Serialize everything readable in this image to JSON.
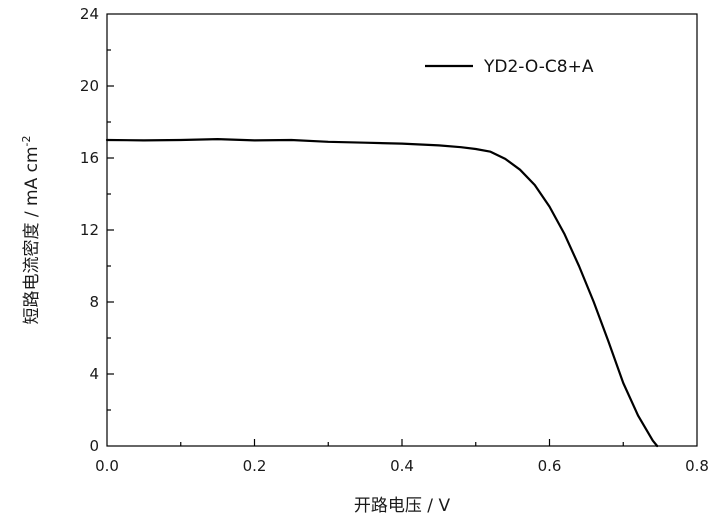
{
  "chart_data": {
    "type": "line",
    "title": "",
    "xlabel": "开路电压 / V",
    "ylabel": "短路电流密度 / mA cm",
    "ylabel_sup": "-2",
    "xlim": [
      0.0,
      0.8
    ],
    "ylim": [
      0,
      24
    ],
    "xticks": [
      "0.0",
      "0.2",
      "0.4",
      "0.6",
      "0.8"
    ],
    "yticks": [
      "0",
      "4",
      "8",
      "12",
      "16",
      "20",
      "24"
    ],
    "grid": false,
    "legend_position": "top-right",
    "line_color": "#000000",
    "series": [
      {
        "name": "YD2-O-C8+A",
        "x": [
          0.0,
          0.05,
          0.1,
          0.15,
          0.2,
          0.25,
          0.3,
          0.35,
          0.4,
          0.45,
          0.48,
          0.5,
          0.52,
          0.54,
          0.56,
          0.58,
          0.6,
          0.62,
          0.64,
          0.66,
          0.68,
          0.7,
          0.72,
          0.74,
          0.746
        ],
        "y": [
          17.0,
          16.98,
          17.0,
          17.05,
          16.98,
          17.0,
          16.9,
          16.85,
          16.8,
          16.7,
          16.6,
          16.5,
          16.35,
          15.95,
          15.35,
          14.5,
          13.3,
          11.8,
          10.0,
          8.0,
          5.8,
          3.5,
          1.7,
          0.3,
          0.0
        ]
      }
    ]
  }
}
